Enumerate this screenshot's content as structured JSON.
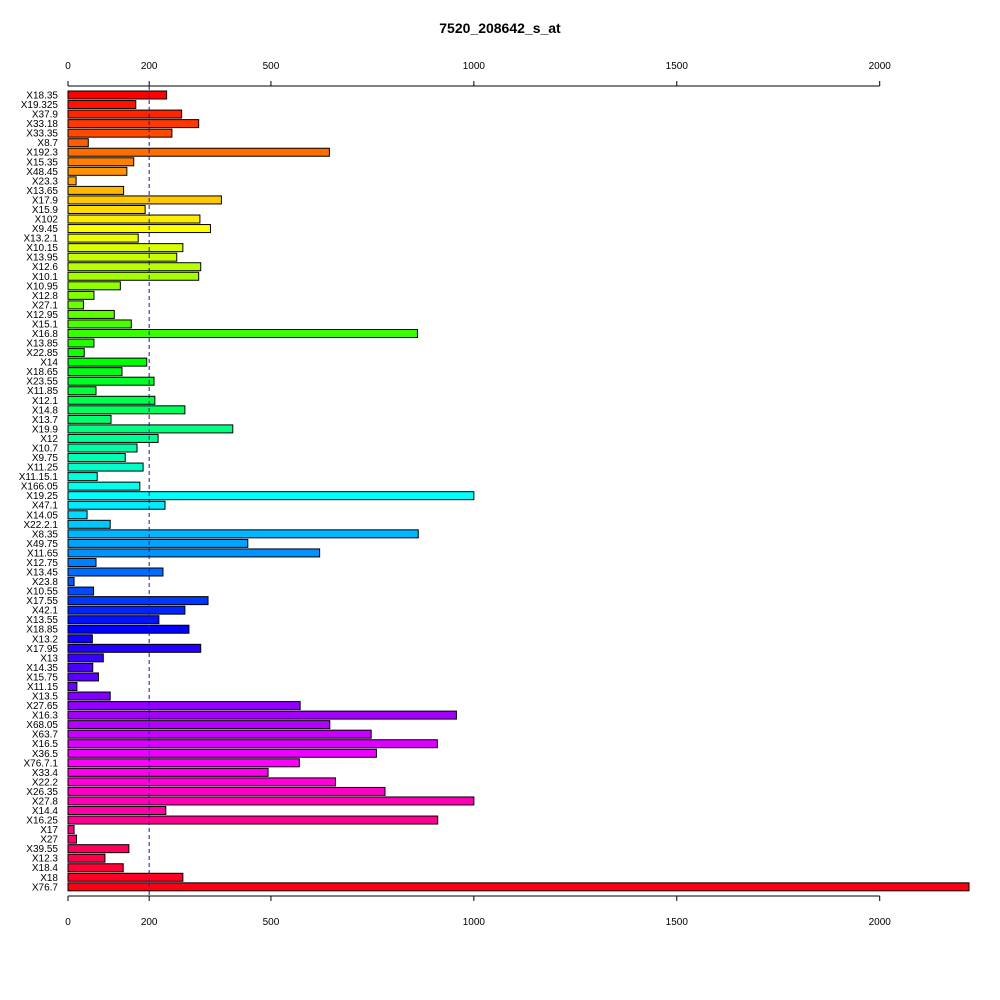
{
  "chart_data": {
    "type": "bar",
    "orientation": "horizontal",
    "title": "7520_208642_s_at",
    "xlabel": "",
    "ylabel": "",
    "xlim": [
      0,
      2220
    ],
    "x_ticks": [
      0,
      200,
      500,
      1000,
      1500,
      2000
    ],
    "x_tick_labels": [
      "0",
      "200",
      "500",
      "1000",
      "1500",
      "2000"
    ],
    "axes": [
      "top",
      "bottom"
    ],
    "reference_line": {
      "value": 200,
      "style": "dashed",
      "color": "#1a1a9e"
    },
    "grid": false,
    "legend": "none",
    "categories": [
      "X18.35",
      "X19.325",
      "X37.9",
      "X33.18",
      "X33.35",
      "X8.7",
      "X192.3",
      "X15.35",
      "X48.45",
      "X23.3",
      "X13.65",
      "X17.9",
      "X15.9",
      "X102",
      "X9.45",
      "X13.2.1",
      "X10.15",
      "X13.95",
      "X12.6",
      "X10.1",
      "X10.95",
      "X12.8",
      "X27.1",
      "X12.95",
      "X15.1",
      "X16.8",
      "X13.85",
      "X22.85",
      "X14",
      "X18.65",
      "X23.55",
      "X11.85",
      "X12.1",
      "X14.8",
      "X13.7",
      "X19.9",
      "X12",
      "X10.7",
      "X9.75",
      "X11.25",
      "X11.15.1",
      "X166.05",
      "X19.25",
      "X47.1",
      "X14.05",
      "X22.2.1",
      "X8.35",
      "X49.75",
      "X11.65",
      "X12.75",
      "X13.45",
      "X23.8",
      "X10.55",
      "X17.55",
      "X42.1",
      "X13.55",
      "X18.85",
      "X13.2",
      "X17.95",
      "X13",
      "X14.35",
      "X15.75",
      "X11.15",
      "X13.5",
      "X27.65",
      "X16.3",
      "X68.05",
      "X63.7",
      "X16.5",
      "X36.5",
      "X76.7.1",
      "X33.4",
      "X22.2",
      "X26.35",
      "X27.8",
      "X14.4",
      "X16.25",
      "X17",
      "X27",
      "X39.55",
      "X12.3",
      "X18.4",
      "X18",
      "X76.7"
    ],
    "values": [
      243,
      167,
      280,
      322,
      256,
      50,
      644,
      162,
      145,
      20,
      137,
      378,
      190,
      325,
      351,
      173,
      283,
      268,
      327,
      322,
      129,
      64,
      38,
      114,
      156,
      861,
      64,
      40,
      194,
      133,
      212,
      69,
      214,
      288,
      106,
      406,
      222,
      170,
      141,
      185,
      72,
      177,
      1000,
      239,
      47,
      104,
      863,
      443,
      620,
      69,
      234,
      15,
      63,
      345,
      288,
      224,
      298,
      60,
      327,
      87,
      61,
      75,
      22,
      104,
      572,
      957,
      645,
      747,
      910,
      760,
      570,
      493,
      659,
      781,
      1000,
      241,
      911,
      15,
      21,
      150,
      91,
      136,
      283,
      2220
    ],
    "colors": [
      "#FF0000",
      "#FF0016",
      "#FF002C",
      "#FF0042",
      "#FF0058",
      "#FF006E",
      "#FF0084",
      "#FF009A",
      "#FF00B0",
      "#FF00C6",
      "#FF00DC",
      "#FF00F2",
      "#F400FF",
      "#DE00FF",
      "#C800FF",
      "#B200FF",
      "#9C00FF",
      "#8600FF",
      "#7000FF",
      "#5A00FF",
      "#4400FF",
      "#2E00FF",
      "#1800FF",
      "#0200FF",
      "#0014FF",
      "#002AFF",
      "#0040FF",
      "#0056FF",
      "#006CFF",
      "#0082FF",
      "#0098FF",
      "#00AEFF",
      "#00C4FF",
      "#00DAFF",
      "#00F0FF",
      "#00FFF8",
      "#00FFE2",
      "#00FFCC",
      "#00FFB6",
      "#00FFA0",
      "#00FF8A",
      "#00FF74",
      "#00FF5E",
      "#00FF48",
      "#00FF32",
      "#00FF1C",
      "#00FF06",
      "#10FF00",
      "#26FF00",
      "#3CFF00",
      "#52FF00",
      "#68FF00",
      "#7EFF00",
      "#94FF00",
      "#AAFF00",
      "#C0FF00",
      "#D6FF00",
      "#ECFF00",
      "#FFFC00",
      "#FFE600",
      "#FFD000",
      "#FFBA00",
      "#FFA400",
      "#FF8E00",
      "#FF7800",
      "#FF6200",
      "#FF4C00",
      "#FF3600",
      "#FF2000",
      "#FF0A00",
      "#FF0000",
      "#FF0000",
      "#FF0000",
      "#FF0000",
      "#FF0000",
      "#FF0000",
      "#FF0000",
      "#FF0000",
      "#FF0000",
      "#FF0000",
      "#FF0000",
      "#FF0000",
      "#FF0000",
      "#FF0000"
    ]
  }
}
